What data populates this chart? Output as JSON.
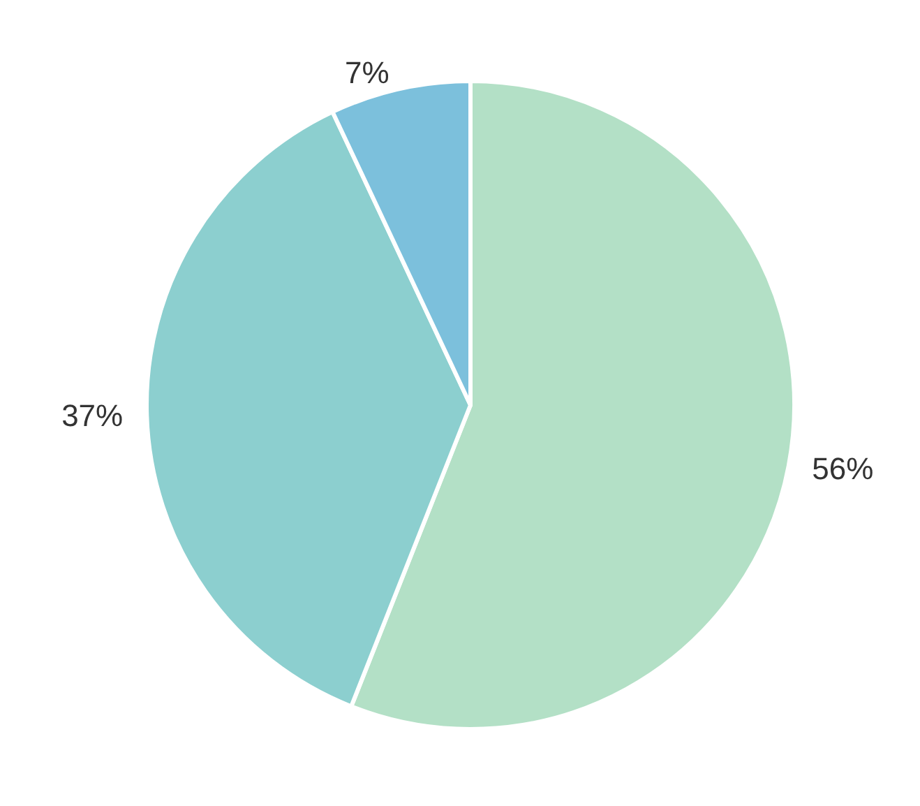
{
  "chart_data": {
    "type": "pie",
    "categories": [
      null,
      null,
      null
    ],
    "values": [
      56,
      37,
      7
    ],
    "colors": [
      "#b3e0c6",
      "#8ccfcf",
      "#7cc0dc"
    ],
    "value_labels": [
      "56%",
      "37%",
      "7%"
    ]
  }
}
